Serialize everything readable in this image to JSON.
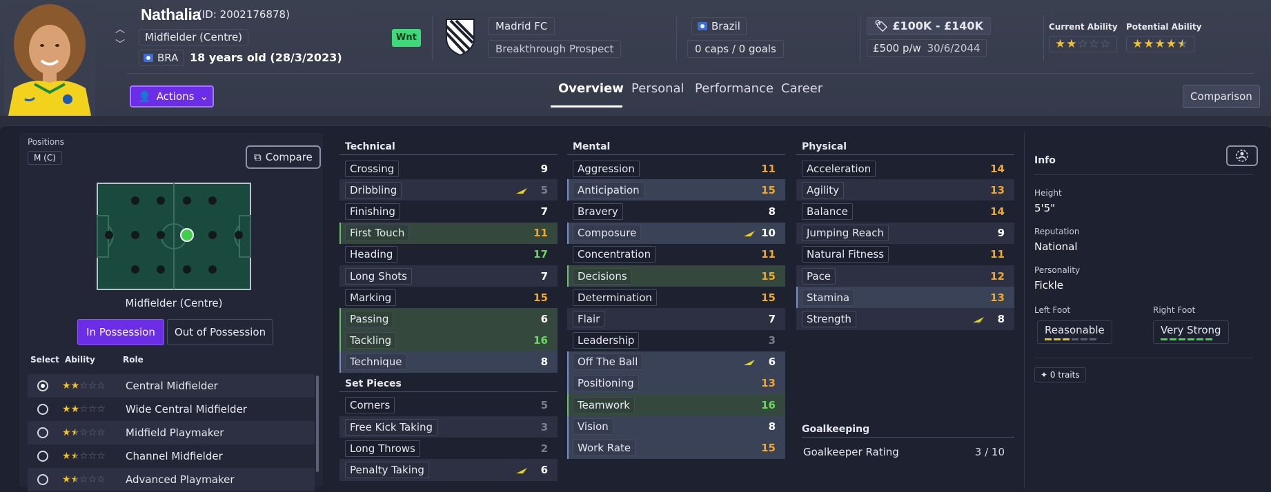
{
  "player": {
    "name": "Nathalia",
    "id_text": "(ID: 2002176878)",
    "position": "Midfielder (Centre)",
    "nation_code": "BRA",
    "age_text": "18 years old (28/3/2023)",
    "wnt_badge": "Wnt"
  },
  "club": {
    "name": "Madrid FC",
    "status": "Breakthrough Prospect"
  },
  "international": {
    "country": "Brazil",
    "caps": "0 caps / 0 goals"
  },
  "contract": {
    "value": "£100K - £140K",
    "wage": "£500 p/w",
    "expiry": "30/6/2044"
  },
  "ability": {
    "current_label": "Current Ability",
    "potential_label": "Potential Ability",
    "current_stars": 2,
    "potential_stars": 4.5
  },
  "header_nav": {
    "actions": "Actions",
    "tabs": [
      "Overview",
      "Personal",
      "Performance",
      "Career"
    ],
    "active_tab": "Overview",
    "comparison": "Comparison"
  },
  "positions_panel": {
    "label": "Positions",
    "position_chip": "M (C)",
    "compare_button": "Compare",
    "pitch_caption": "Midfielder (Centre)",
    "in_possession": "In Possession",
    "out_of_possession": "Out of Possession",
    "col_select": "Select",
    "col_ability": "Ability",
    "col_role": "Role",
    "roles": [
      {
        "name": "Central Midfielder",
        "stars": 2,
        "selected": true
      },
      {
        "name": "Wide Central Midfielder",
        "stars": 2,
        "selected": false
      },
      {
        "name": "Midfield Playmaker",
        "stars": 1.5,
        "selected": false
      },
      {
        "name": "Channel Midfielder",
        "stars": 1.5,
        "selected": false
      },
      {
        "name": "Advanced Playmaker",
        "stars": 1.5,
        "selected": false
      }
    ]
  },
  "technical": {
    "title": "Technical",
    "attrs": [
      {
        "name": "Crossing",
        "value": "9"
      },
      {
        "name": "Dribbling",
        "value": "5",
        "trend": true
      },
      {
        "name": "Finishing",
        "value": "7"
      },
      {
        "name": "First Touch",
        "value": "11",
        "hl": "green"
      },
      {
        "name": "Heading",
        "value": "17"
      },
      {
        "name": "Long Shots",
        "value": "7"
      },
      {
        "name": "Marking",
        "value": "15"
      },
      {
        "name": "Passing",
        "value": "6",
        "hl": "green"
      },
      {
        "name": "Tackling",
        "value": "16",
        "hl": "green"
      },
      {
        "name": "Technique",
        "value": "8",
        "hl": "blue"
      }
    ]
  },
  "set_pieces": {
    "title": "Set Pieces",
    "attrs": [
      {
        "name": "Corners",
        "value": "5"
      },
      {
        "name": "Free Kick Taking",
        "value": "3"
      },
      {
        "name": "Long Throws",
        "value": "2"
      },
      {
        "name": "Penalty Taking",
        "value": "6",
        "trend": true
      }
    ]
  },
  "mental": {
    "title": "Mental",
    "attrs": [
      {
        "name": "Aggression",
        "value": "11"
      },
      {
        "name": "Anticipation",
        "value": "15",
        "hl": "blue"
      },
      {
        "name": "Bravery",
        "value": "8"
      },
      {
        "name": "Composure",
        "value": "10",
        "trend": true,
        "hl": "blue"
      },
      {
        "name": "Concentration",
        "value": "11"
      },
      {
        "name": "Decisions",
        "value": "15",
        "hl": "green"
      },
      {
        "name": "Determination",
        "value": "15"
      },
      {
        "name": "Flair",
        "value": "7"
      },
      {
        "name": "Leadership",
        "value": "3"
      },
      {
        "name": "Off The Ball",
        "value": "6",
        "trend": true,
        "hl": "blue"
      },
      {
        "name": "Positioning",
        "value": "13",
        "hl": "blue"
      },
      {
        "name": "Teamwork",
        "value": "16",
        "hl": "green"
      },
      {
        "name": "Vision",
        "value": "8",
        "hl": "blue"
      },
      {
        "name": "Work Rate",
        "value": "15",
        "hl": "blue"
      }
    ]
  },
  "physical": {
    "title": "Physical",
    "attrs": [
      {
        "name": "Acceleration",
        "value": "14"
      },
      {
        "name": "Agility",
        "value": "13"
      },
      {
        "name": "Balance",
        "value": "14"
      },
      {
        "name": "Jumping Reach",
        "value": "9"
      },
      {
        "name": "Natural Fitness",
        "value": "11"
      },
      {
        "name": "Pace",
        "value": "12"
      },
      {
        "name": "Stamina",
        "value": "13",
        "hl": "blue"
      },
      {
        "name": "Strength",
        "value": "8",
        "trend": true
      }
    ]
  },
  "goalkeeping": {
    "title": "Goalkeeping",
    "label": "Goalkeeper Rating",
    "value": "3 / 10"
  },
  "info": {
    "title": "Info",
    "height_label": "Height",
    "height": "5'5\"",
    "reputation_label": "Reputation",
    "reputation": "National",
    "personality_label": "Personality",
    "personality": "Fickle",
    "left_foot_label": "Left Foot",
    "left_foot": "Reasonable",
    "left_foot_level": 3,
    "right_foot_label": "Right Foot",
    "right_foot": "Very Strong",
    "right_foot_level": 6,
    "traits": "0 traits"
  },
  "colors": {
    "accent_purple": "#6b2ee6",
    "value_orange": "#f5a623",
    "value_green": "#66dd55",
    "trend_yellow": "#e6d21a",
    "foot_yellow": "#e6c51a",
    "foot_green": "#3fd94a"
  }
}
